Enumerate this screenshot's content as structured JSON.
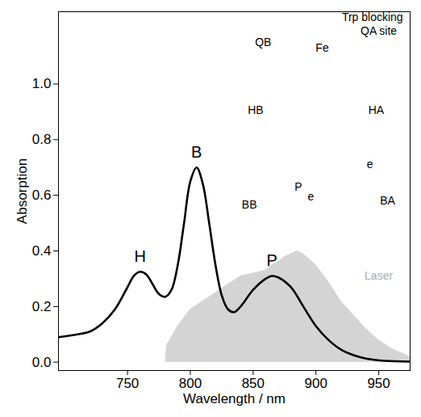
{
  "chart_data": {
    "type": "line",
    "x_label": "Wavelength / nm",
    "y_label": "Absorption",
    "xlim": [
      695,
      975
    ],
    "ylim": [
      -0.03,
      1.26
    ],
    "xticks": [
      750,
      800,
      850,
      900,
      950
    ],
    "yticks": [
      {
        "value": 0,
        "label": "0.0"
      },
      {
        "value": 0.2,
        "label": "0.2"
      },
      {
        "value": 0.4,
        "label": "0.4"
      },
      {
        "value": 0.6,
        "label": "0.6"
      },
      {
        "value": 0.8,
        "label": "0.8"
      },
      {
        "value": 1.0,
        "label": "1.0"
      }
    ],
    "grid": false,
    "series": [
      {
        "type": "area",
        "color": "#d4d4d4",
        "x": [
          780,
          781,
          790,
          800,
          810,
          820,
          830,
          840,
          850,
          860,
          865,
          870,
          875,
          880,
          885,
          890,
          895,
          900,
          905,
          910,
          920,
          930,
          940,
          950,
          960,
          970,
          975
        ],
        "values": [
          0,
          0.06,
          0.13,
          0.19,
          0.22,
          0.25,
          0.28,
          0.31,
          0.32,
          0.33,
          0.35,
          0.36,
          0.38,
          0.39,
          0.4,
          0.39,
          0.37,
          0.35,
          0.32,
          0.29,
          0.22,
          0.17,
          0.12,
          0.08,
          0.05,
          0.03,
          0.02
        ]
      },
      {
        "type": "line",
        "color": "#000000",
        "x": [
          695,
          710,
          720,
          730,
          740,
          750,
          755,
          760,
          765,
          770,
          775,
          780,
          785,
          790,
          795,
          800,
          805,
          810,
          815,
          820,
          825,
          830,
          835,
          840,
          850,
          860,
          865,
          870,
          880,
          890,
          900,
          910,
          920,
          930,
          940,
          955,
          975
        ],
        "values": [
          0.09,
          0.1,
          0.11,
          0.14,
          0.19,
          0.27,
          0.31,
          0.325,
          0.315,
          0.28,
          0.245,
          0.235,
          0.26,
          0.35,
          0.5,
          0.65,
          0.7,
          0.64,
          0.5,
          0.35,
          0.24,
          0.19,
          0.18,
          0.2,
          0.26,
          0.3,
          0.31,
          0.305,
          0.27,
          0.2,
          0.13,
          0.08,
          0.045,
          0.025,
          0.013,
          0.005,
          0.002
        ]
      }
    ],
    "annotations": [
      {
        "text": "H",
        "x": 760,
        "y": 0.38,
        "color": "#000000"
      },
      {
        "text": "B",
        "x": 805,
        "y": 0.755,
        "color": "#000000"
      },
      {
        "text": "P",
        "x": 865,
        "y": 0.365,
        "color": "#000000"
      },
      {
        "text": "Laser",
        "x": 950,
        "y": 0.31,
        "color": "#aaaaaa"
      },
      {
        "text": "QB",
        "x": 858,
        "y": 1.15,
        "color": "#000000"
      },
      {
        "text": "Fe",
        "x": 905,
        "y": 1.13,
        "color": "#000000"
      },
      {
        "text": "Trp blocking",
        "x": 945,
        "y": 1.24,
        "color": "#000000"
      },
      {
        "text": "QA site",
        "x": 950,
        "y": 1.19,
        "color": "#000000"
      },
      {
        "text": "HB",
        "x": 852,
        "y": 0.905,
        "color": "#000000"
      },
      {
        "text": "HA",
        "x": 948,
        "y": 0.905,
        "color": "#000000"
      },
      {
        "text": "BB",
        "x": 847,
        "y": 0.565,
        "color": "#000000"
      },
      {
        "text": "P",
        "x": 886,
        "y": 0.63,
        "color": "#000000"
      },
      {
        "text": "BA",
        "x": 957,
        "y": 0.58,
        "color": "#000000"
      },
      {
        "text": "e",
        "x": 896,
        "y": 0.595,
        "color": "#000000"
      },
      {
        "text": "e",
        "x": 943,
        "y": 0.71,
        "color": "#000000"
      }
    ]
  }
}
